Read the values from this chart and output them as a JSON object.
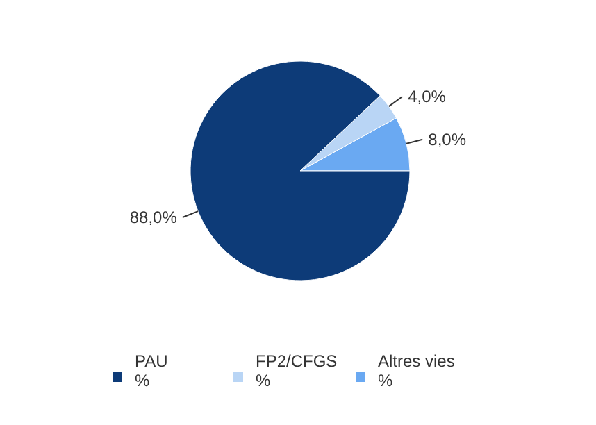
{
  "chart_data": {
    "type": "pie",
    "categories": [
      "PAU %",
      "FP2/CFGS %",
      "Altres vies %"
    ],
    "values": [
      88,
      4,
      8
    ],
    "colors": [
      "#0d3b78",
      "#b9d5f5",
      "#6aa9f2"
    ],
    "value_labels": [
      "88,0%",
      "4,0%",
      "8,0%"
    ],
    "legend": "bottom"
  }
}
